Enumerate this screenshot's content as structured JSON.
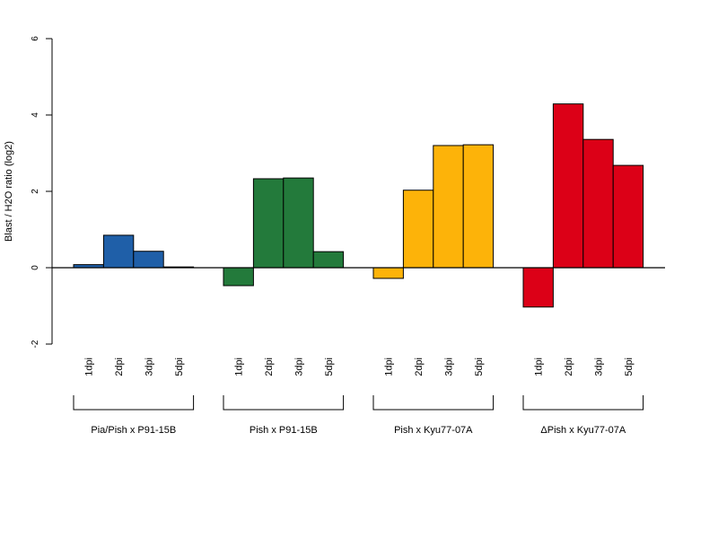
{
  "chart_data": {
    "type": "bar",
    "title": "",
    "xlabel": "",
    "ylabel": "Blast / H2O ratio (log2)",
    "ylim": [
      -2,
      6
    ],
    "yticks": [
      -2,
      0,
      2,
      4,
      6
    ],
    "grid": false,
    "legend": "none",
    "categories": [
      "1dpi",
      "2dpi",
      "3dpi",
      "5dpi"
    ],
    "groups": [
      {
        "name": "Pia/Pish x P91-15B",
        "color": "#1F5FA8",
        "values": [
          0.08,
          0.85,
          0.43,
          0.02
        ]
      },
      {
        "name": "Pish x P91-15B",
        "color": "#237A3B",
        "values": [
          -0.47,
          2.33,
          2.35,
          0.42
        ]
      },
      {
        "name": "Pish x Kyu77-07A",
        "color": "#FDB309",
        "values": [
          -0.28,
          2.03,
          3.2,
          3.22
        ]
      },
      {
        "name": "ΔPish x Kyu77-07A",
        "color": "#DC0017",
        "values": [
          -1.03,
          4.29,
          3.36,
          2.68
        ]
      }
    ]
  }
}
